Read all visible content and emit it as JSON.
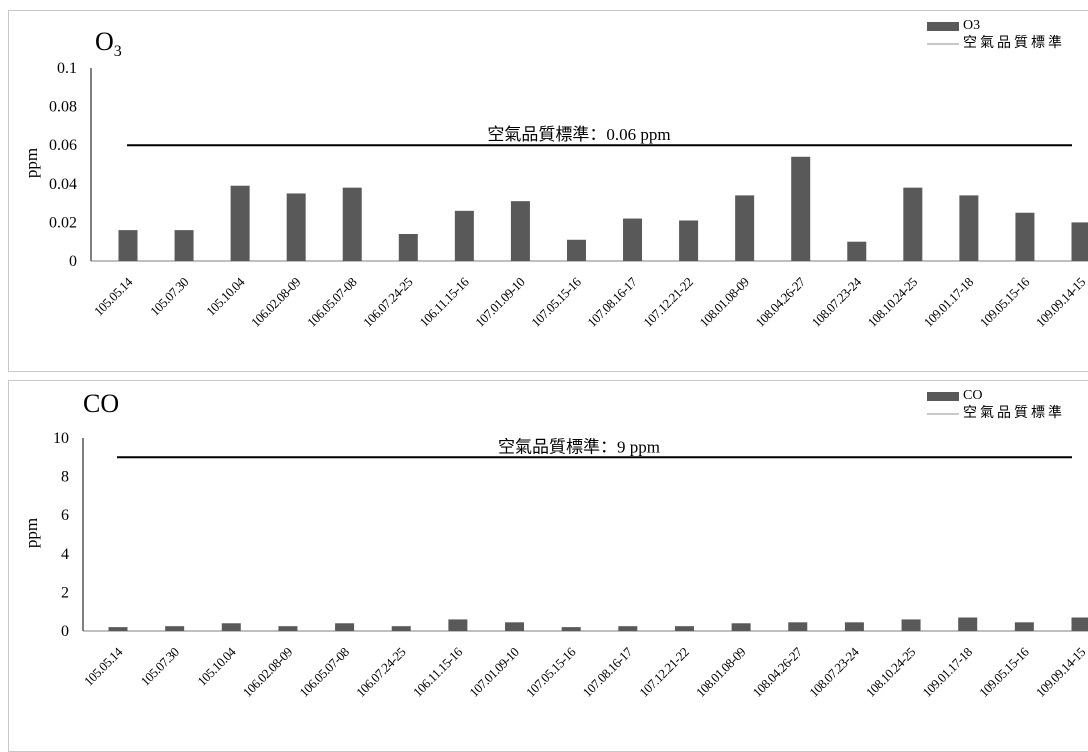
{
  "chart_data": [
    {
      "type": "bar",
      "title": "O",
      "title_sub": "3",
      "ylabel": "ppm",
      "ylim": [
        0,
        0.1
      ],
      "yticks": [
        "0",
        "0.02",
        "0.04",
        "0.06",
        "0.08",
        "0.1"
      ],
      "categories": [
        "105.05.14",
        "105.07.30",
        "105.10.04",
        "106.02.08-09",
        "106.05.07-08",
        "106.07.24-25",
        "106.11.15-16",
        "107.01.09-10",
        "107.05.15-16",
        "107.08.16-17",
        "107.12.21-22",
        "108.01.08-09",
        "108.04.26-27",
        "108.07.23-24",
        "108.10.24-25",
        "109.01.17-18",
        "109.05.15-16",
        "109.09.14-15"
      ],
      "series": [
        {
          "name": "O3",
          "values": [
            0.016,
            0.016,
            0.039,
            0.035,
            0.038,
            0.014,
            0.026,
            0.031,
            0.011,
            0.022,
            0.021,
            0.034,
            0.054,
            0.01,
            0.038,
            0.034,
            0.025,
            0.02
          ],
          "color": "#595959"
        }
      ],
      "reference_line": {
        "name": "空氣品質標準",
        "value": 0.06,
        "label": "空氣品質標準：0.06 ppm",
        "color": "#000000",
        "legend_color": "#bfbfbf"
      }
    },
    {
      "type": "bar",
      "title": "CO",
      "ylabel": "ppm",
      "ylim": [
        0,
        10
      ],
      "yticks": [
        "0",
        "2",
        "4",
        "6",
        "8",
        "10"
      ],
      "categories": [
        "105.05.14",
        "105.07.30",
        "105.10.04",
        "106.02.08-09",
        "106.05.07-08",
        "106.07.24-25",
        "106.11.15-16",
        "107.01.09-10",
        "107.05.15-16",
        "107.08.16-17",
        "107.12.21-22",
        "108.01.08-09",
        "108.04.26-27",
        "108.07.23-24",
        "108.10.24-25",
        "109.01.17-18",
        "109.05.15-16",
        "109.09.14-15"
      ],
      "series": [
        {
          "name": "CO",
          "values": [
            0.2,
            0.25,
            0.4,
            0.25,
            0.4,
            0.25,
            0.6,
            0.45,
            0.2,
            0.25,
            0.25,
            0.4,
            0.45,
            0.45,
            0.6,
            0.7,
            0.45,
            0.7
          ],
          "color": "#595959"
        }
      ],
      "reference_line": {
        "name": "空氣品質標準",
        "value": 9,
        "label": "空氣品質標準：9 ppm",
        "color": "#000000",
        "legend_color": "#bfbfbf"
      }
    }
  ]
}
